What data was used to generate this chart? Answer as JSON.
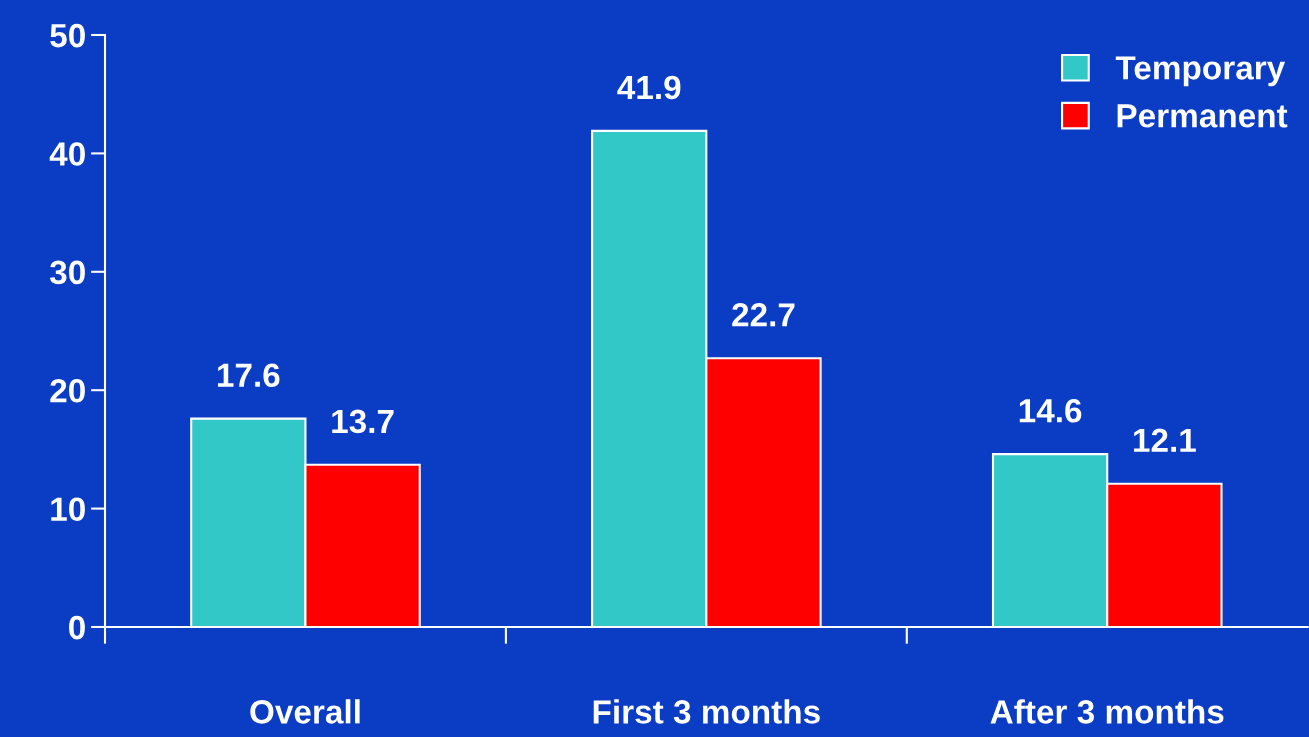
{
  "chart_data": {
    "type": "bar",
    "categories": [
      "Overall",
      "First 3 months",
      "After 3 months"
    ],
    "series": [
      {
        "name": "Temporary",
        "color": "#33c8c8",
        "values": [
          17.6,
          41.9,
          14.6
        ]
      },
      {
        "name": "Permanent",
        "color": "#ff0000",
        "values": [
          13.7,
          22.7,
          12.1
        ]
      }
    ],
    "ylim": [
      0,
      50
    ],
    "yticks": [
      0,
      10,
      20,
      30,
      40,
      50
    ],
    "grid": false,
    "legend": "top right",
    "data_labels": true
  }
}
